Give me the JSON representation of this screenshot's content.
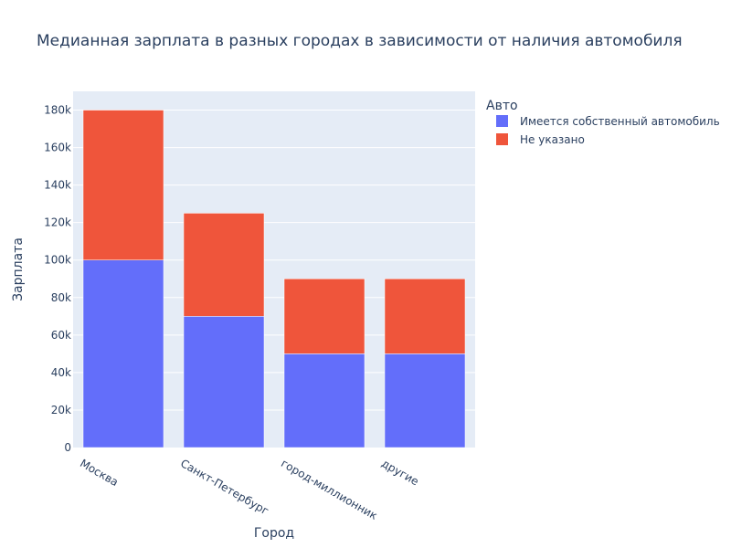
{
  "chart_data": {
    "type": "bar",
    "barmode": "stack",
    "title": "Медианная зарплата в разных городах в зависимости от наличия автомобиля",
    "xlabel": "Город",
    "ylabel": "Зарплата",
    "categories": [
      "Москва",
      "Санкт-Петербург",
      "город-миллионник",
      "другие"
    ],
    "series": [
      {
        "name": "Имеется собственный автомобиль",
        "values": [
          100000,
          70000,
          50000,
          50000
        ],
        "color": "#636efa"
      },
      {
        "name": "Не указано",
        "values": [
          80000,
          55000,
          40000,
          40000
        ],
        "color": "#ef553b"
      }
    ],
    "ylim": [
      0,
      190000
    ],
    "yticks": [
      0,
      20000,
      40000,
      60000,
      80000,
      100000,
      120000,
      140000,
      160000,
      180000
    ],
    "ytick_labels": [
      "0",
      "20k",
      "40k",
      "60k",
      "80k",
      "100k",
      "120k",
      "140k",
      "160k",
      "180k"
    ],
    "legend_title": "Авто",
    "legend_position": "top-right",
    "grid": true,
    "plot_background": "#e5ecf6"
  }
}
